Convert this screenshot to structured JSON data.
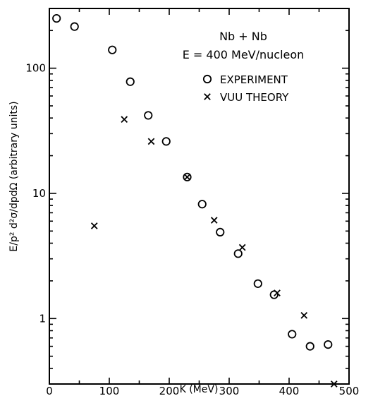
{
  "chart_data": {
    "type": "scatter",
    "title": "Nb + Nb",
    "subtitle": "E = 400 MeV/nucleon",
    "xlabel": "K (MeV)",
    "ylabel": "E/p² d²σ/dpdΩ  (arbitrary units)",
    "xlim": [
      0,
      500
    ],
    "ylim": [
      0.3,
      300
    ],
    "yscale": "log",
    "x_ticks": [
      "0",
      "100",
      "200",
      "300",
      "400",
      "500"
    ],
    "y_ticks": [
      "1",
      "10",
      "100"
    ],
    "legend_position": "top-right",
    "grid": false,
    "series": [
      {
        "name": "EXPERIMENT",
        "marker": "circle",
        "x": [
          12,
          42,
          105,
          135,
          165,
          195,
          230,
          255,
          285,
          315,
          348,
          375,
          405,
          435,
          465
        ],
        "y": [
          250,
          215,
          140,
          78,
          42,
          26,
          13.5,
          8.2,
          4.9,
          3.3,
          1.9,
          1.55,
          0.75,
          0.6,
          0.62
        ]
      },
      {
        "name": "VUU THEORY",
        "marker": "x",
        "x": [
          75,
          125,
          170,
          230,
          275,
          322,
          380,
          425,
          475
        ],
        "y": [
          5.5,
          39,
          26,
          13.5,
          6.1,
          3.7,
          1.6,
          1.06,
          0.3
        ]
      }
    ]
  }
}
